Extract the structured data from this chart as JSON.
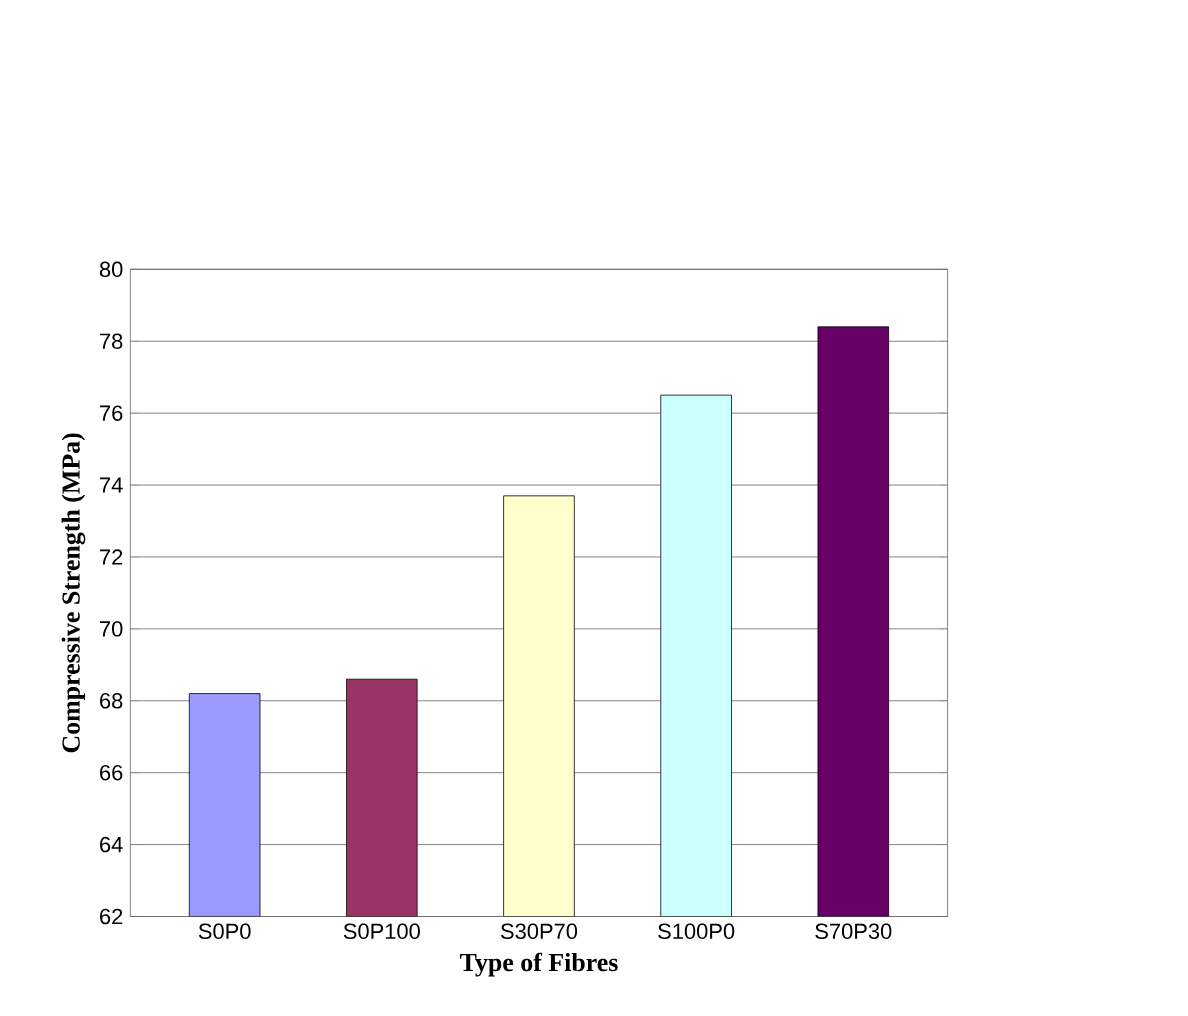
{
  "chart_data": {
    "type": "bar",
    "xlabel": "Type of Fibres",
    "ylabel": "Compressive Strength (MPa)",
    "categories": [
      "S0P0",
      "S0P100",
      "S30P70",
      "S100P0",
      "S70P30"
    ],
    "values": [
      68.2,
      68.6,
      73.7,
      76.5,
      78.4
    ],
    "colors": [
      "#9999ff",
      "#993366",
      "#ffffcc",
      "#ccffff",
      "#660066"
    ],
    "ylim": [
      62,
      80
    ],
    "yticks": [
      62,
      64,
      66,
      68,
      70,
      72,
      74,
      76,
      78,
      80
    ],
    "grid": "y"
  }
}
